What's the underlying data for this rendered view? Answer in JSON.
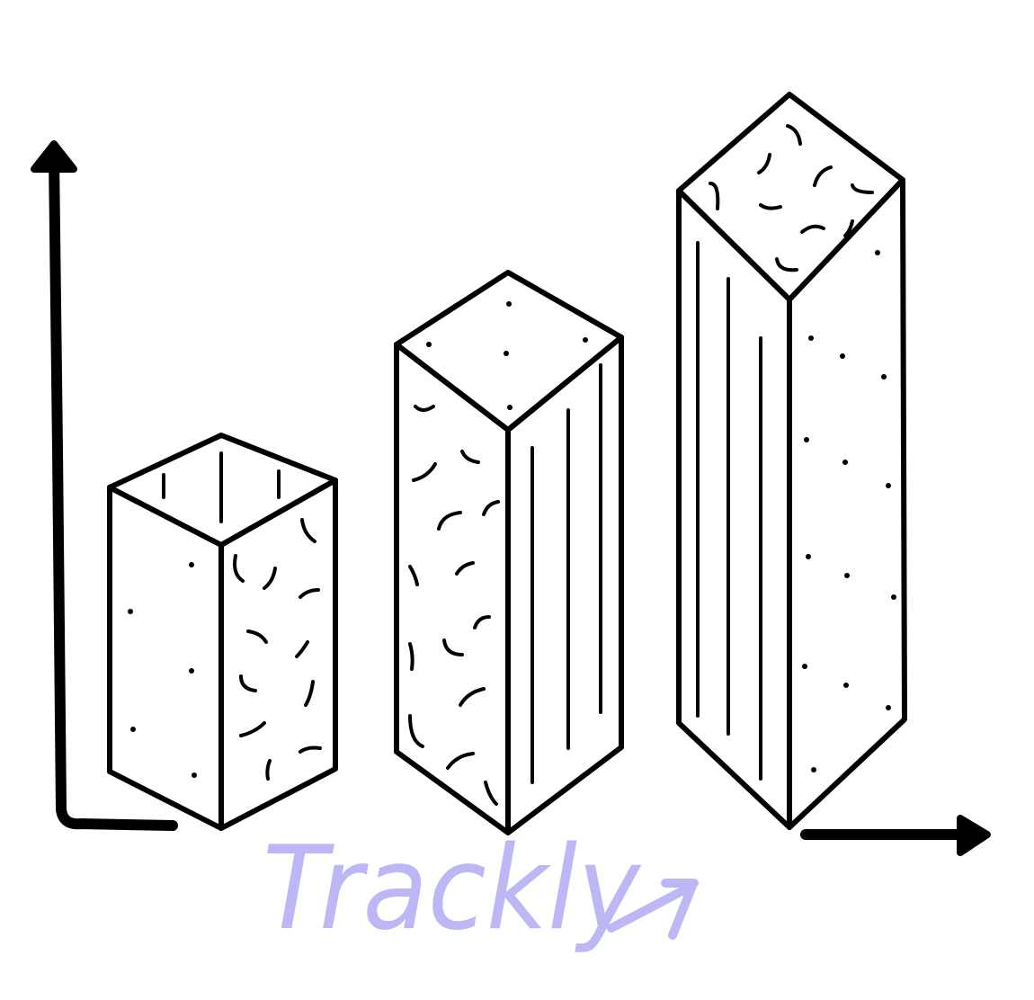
{
  "logo": {
    "text": "Trackly"
  }
}
